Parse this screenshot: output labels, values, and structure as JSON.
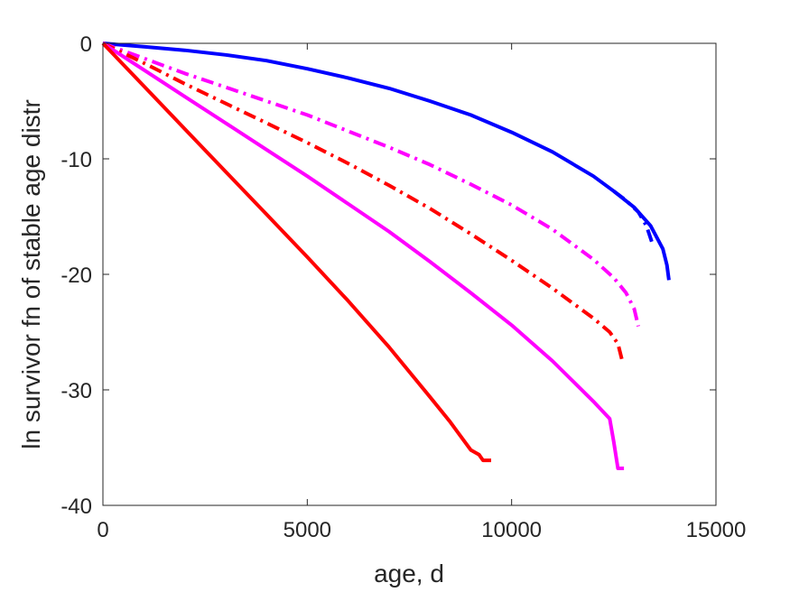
{
  "chart_data": {
    "type": "line",
    "xlabel": "age, d",
    "ylabel": "ln survivor fn of stable age distr",
    "xlim": [
      0,
      15000
    ],
    "ylim": [
      -40,
      0
    ],
    "xticks": [
      0,
      5000,
      10000,
      15000
    ],
    "yticks": [
      0,
      -10,
      -20,
      -30,
      -40
    ],
    "grid": false,
    "legend": "none",
    "series": [
      {
        "color": "#0000ff",
        "dash": "solid",
        "x": [
          0,
          1000,
          2000,
          3000,
          4000,
          5000,
          6000,
          7000,
          8000,
          9000,
          10000,
          11000,
          12000,
          12500,
          13000,
          13400,
          13700,
          13800,
          13850
        ],
        "y": [
          0,
          -0.3,
          -0.6,
          -1.0,
          -1.5,
          -2.2,
          -3.0,
          -3.9,
          -5.0,
          -6.2,
          -7.7,
          -9.4,
          -11.5,
          -12.8,
          -14.2,
          -15.8,
          -17.8,
          -19.2,
          -20.5
        ]
      },
      {
        "color": "#0000ff",
        "dash": "dashdot",
        "x": [
          12500,
          12800,
          13100,
          13300,
          13450
        ],
        "y": [
          -12.8,
          -13.6,
          -14.6,
          -15.8,
          -17.4
        ]
      },
      {
        "color": "#ff00ff",
        "dash": "dashdot",
        "x": [
          0,
          1000,
          2000,
          3000,
          4000,
          5000,
          6000,
          7000,
          8000,
          9000,
          10000,
          11000,
          12000,
          12500,
          12800,
          13000,
          13100
        ],
        "y": [
          0,
          -1.3,
          -2.6,
          -3.8,
          -5.0,
          -6.2,
          -7.6,
          -9.0,
          -10.5,
          -12.2,
          -14.0,
          -16.1,
          -18.7,
          -20.3,
          -21.6,
          -23.0,
          -24.5
        ]
      },
      {
        "color": "#ff0000",
        "dash": "dashdot",
        "x": [
          0,
          1000,
          2000,
          3000,
          4000,
          5000,
          6000,
          7000,
          8000,
          9000,
          10000,
          11000,
          12000,
          12400,
          12600,
          12700
        ],
        "y": [
          0,
          -1.7,
          -3.5,
          -5.2,
          -6.9,
          -8.6,
          -10.4,
          -12.3,
          -14.3,
          -16.5,
          -18.8,
          -21.2,
          -23.8,
          -25.0,
          -26.0,
          -27.4
        ]
      },
      {
        "color": "#ff00ff",
        "dash": "solid",
        "x": [
          0,
          1000,
          2000,
          3000,
          4000,
          5000,
          6000,
          7000,
          8000,
          9000,
          10000,
          11000,
          12000,
          12400,
          12500,
          12600,
          12750
        ],
        "y": [
          0,
          -2.3,
          -4.6,
          -6.9,
          -9.2,
          -11.5,
          -13.9,
          -16.3,
          -18.9,
          -21.6,
          -24.4,
          -27.5,
          -31.0,
          -32.5,
          -34.5,
          -36.8,
          -36.8
        ]
      },
      {
        "color": "#ff0000",
        "dash": "solid",
        "x": [
          0,
          1000,
          2000,
          3000,
          4000,
          5000,
          6000,
          7000,
          8000,
          8500,
          9000,
          9200,
          9300,
          9500
        ],
        "y": [
          0,
          -3.7,
          -7.4,
          -11.1,
          -14.8,
          -18.5,
          -22.3,
          -26.3,
          -30.6,
          -32.8,
          -35.2,
          -35.6,
          -36.1,
          -36.1
        ]
      }
    ]
  }
}
